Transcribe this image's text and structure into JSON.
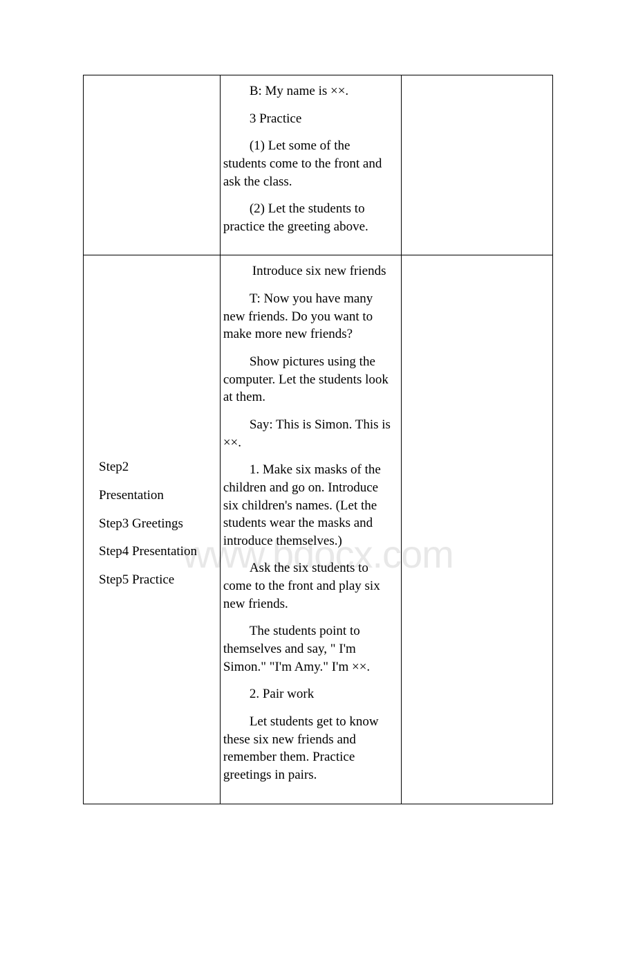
{
  "watermark": "www.bdocx.com",
  "row1": {
    "col2": {
      "p1": "B: My name is ××.",
      "p2": "3 Practice",
      "p3": "(1) Let some of the students come to the front and ask the class.",
      "p4": "(2) Let the students to practice the greeting above."
    }
  },
  "row2": {
    "col1": {
      "line1": "Step2",
      "line2": "Presentation",
      "line3": "Step3 Greetings",
      "line4": "Step4 Presentation",
      "line5": "Step5 Practice"
    },
    "col2": {
      "p1": "Introduce six new friends",
      "p2": "T: Now you have many new friends. Do you want to make more new friends?",
      "p3": "Show pictures using the computer. Let the students look at them.",
      "p4": "Say: This is Simon. This is ××.",
      "p5": "1. Make six masks of the children and go on. Introduce six children's names. (Let the students wear the masks and introduce themselves.)",
      "p6": "Ask the six students to come to the front and play six new friends.",
      "p7": "The students point to themselves and say, \" I'm Simon.\" \"I'm Amy.\" I'm ××.",
      "p8": "2. Pair work",
      "p9": "Let students get to know these six new friends and remember them. Practice greetings in pairs."
    }
  }
}
